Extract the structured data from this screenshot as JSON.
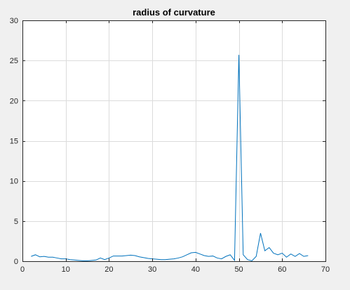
{
  "chart_data": {
    "type": "line",
    "title": "radius of curvature",
    "xlabel": "",
    "ylabel": "",
    "xlim": [
      0,
      70
    ],
    "ylim": [
      0,
      30
    ],
    "xticks": [
      0,
      10,
      20,
      30,
      40,
      50,
      60,
      70
    ],
    "yticks": [
      0,
      5,
      10,
      15,
      20,
      25,
      30
    ],
    "grid": true,
    "series": [
      {
        "color": "#0072BD",
        "x": [
          2,
          3,
          4,
          5,
          6,
          7,
          8,
          9,
          10,
          11,
          12,
          13,
          14,
          15,
          16,
          17,
          18,
          19,
          20,
          21,
          22,
          23,
          24,
          25,
          26,
          27,
          28,
          29,
          30,
          31,
          32,
          33,
          34,
          35,
          36,
          37,
          38,
          39,
          40,
          41,
          42,
          43,
          44,
          45,
          46,
          47,
          48,
          49,
          50,
          51,
          52,
          53,
          54,
          55,
          56,
          57,
          58,
          59,
          60,
          61,
          62,
          63,
          64,
          65,
          66
        ],
        "y": [
          0.6,
          0.8,
          0.55,
          0.6,
          0.5,
          0.5,
          0.4,
          0.3,
          0.3,
          0.2,
          0.15,
          0.1,
          0.05,
          0.05,
          0.1,
          0.15,
          0.4,
          0.2,
          0.4,
          0.65,
          0.65,
          0.65,
          0.7,
          0.75,
          0.7,
          0.55,
          0.45,
          0.35,
          0.3,
          0.25,
          0.2,
          0.2,
          0.25,
          0.3,
          0.4,
          0.55,
          0.8,
          1.05,
          1.1,
          0.9,
          0.7,
          0.6,
          0.65,
          0.4,
          0.3,
          0.6,
          0.8,
          0.1,
          25.7,
          0.8,
          0.2,
          0.05,
          0.6,
          3.5,
          1.3,
          1.7,
          1.0,
          0.8,
          1.0,
          0.5,
          0.9,
          0.6,
          0.95,
          0.6,
          0.7
        ]
      }
    ]
  }
}
